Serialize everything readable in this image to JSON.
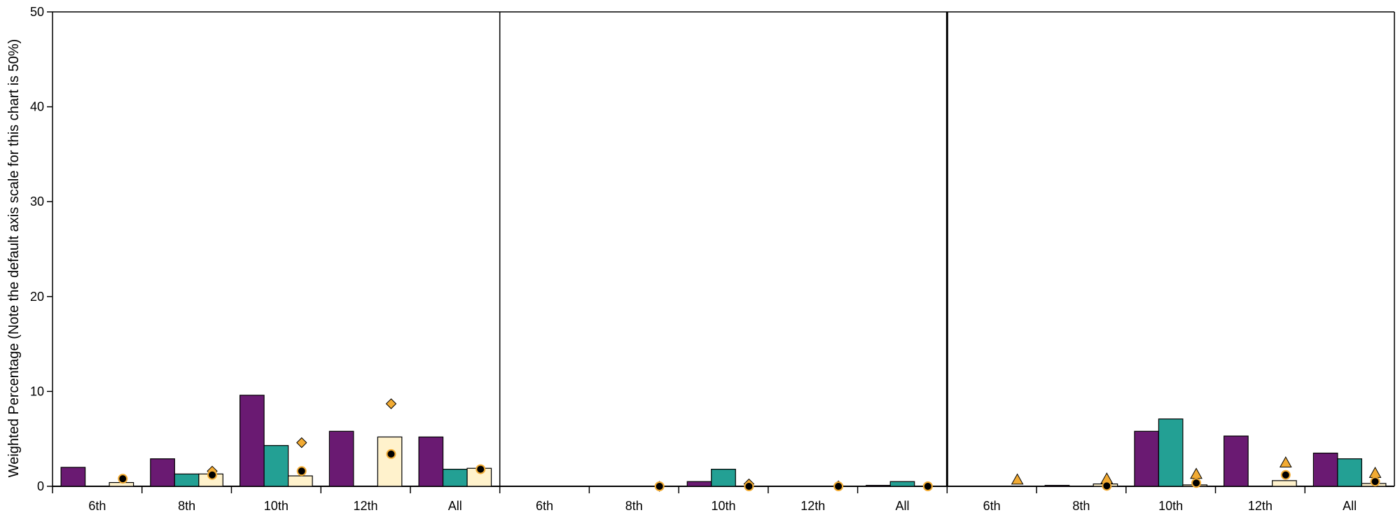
{
  "chart_data": {
    "type": "bar",
    "ylabel": "Weighted Percentage (Note the default axis scale for this chart is 50%)",
    "ylim": [
      0,
      50
    ],
    "yticks": [
      0,
      10,
      20,
      30,
      40,
      50
    ],
    "grid": false,
    "colors": {
      "purple": "#6a1a72",
      "teal": "#23a094",
      "cream": "#fff2cc",
      "marker_fill": "#f2ab33",
      "dot": "#000000",
      "stroke": "#000000"
    },
    "panels": [
      {
        "categories": [
          "6th",
          "8th",
          "10th",
          "12th",
          "All"
        ],
        "series": [
          {
            "values": [
              2.0,
              2.9,
              9.6,
              5.8,
              5.2
            ]
          },
          {
            "values": [
              0,
              1.3,
              4.3,
              0,
              1.8
            ]
          },
          {
            "values": [
              0.4,
              1.3,
              1.1,
              5.2,
              1.9
            ]
          }
        ],
        "markers": {
          "shape": "diamond",
          "values": [
            null,
            1.6,
            4.6,
            8.7,
            null
          ]
        },
        "dots": [
          0.8,
          1.2,
          1.6,
          3.4,
          1.8
        ]
      },
      {
        "categories": [
          "6th",
          "8th",
          "10th",
          "12th",
          "All"
        ],
        "series": [
          {
            "values": [
              0,
              0,
              0.5,
              0,
              0.1
            ]
          },
          {
            "values": [
              0,
              0,
              1.8,
              0,
              0.5
            ]
          },
          {
            "values": [
              0,
              0,
              0,
              0,
              0
            ]
          }
        ],
        "markers": {
          "shape": "diamond",
          "values": [
            null,
            0,
            0.25,
            0.05,
            null
          ]
        },
        "dots": [
          null,
          0,
          0,
          0,
          0
        ]
      },
      {
        "categories": [
          "6th",
          "8th",
          "10th",
          "12th",
          "All"
        ],
        "series": [
          {
            "values": [
              0,
              0.1,
              5.8,
              5.3,
              3.5
            ]
          },
          {
            "values": [
              0,
              0,
              7.1,
              0,
              2.9
            ]
          },
          {
            "values": [
              0,
              0.25,
              0.15,
              0.6,
              0.3
            ]
          }
        ],
        "markers": {
          "shape": "triangle",
          "values": [
            0.7,
            0.8,
            1.3,
            2.5,
            1.4
          ]
        },
        "dots": [
          null,
          0.05,
          0.35,
          1.2,
          0.5
        ]
      }
    ]
  }
}
